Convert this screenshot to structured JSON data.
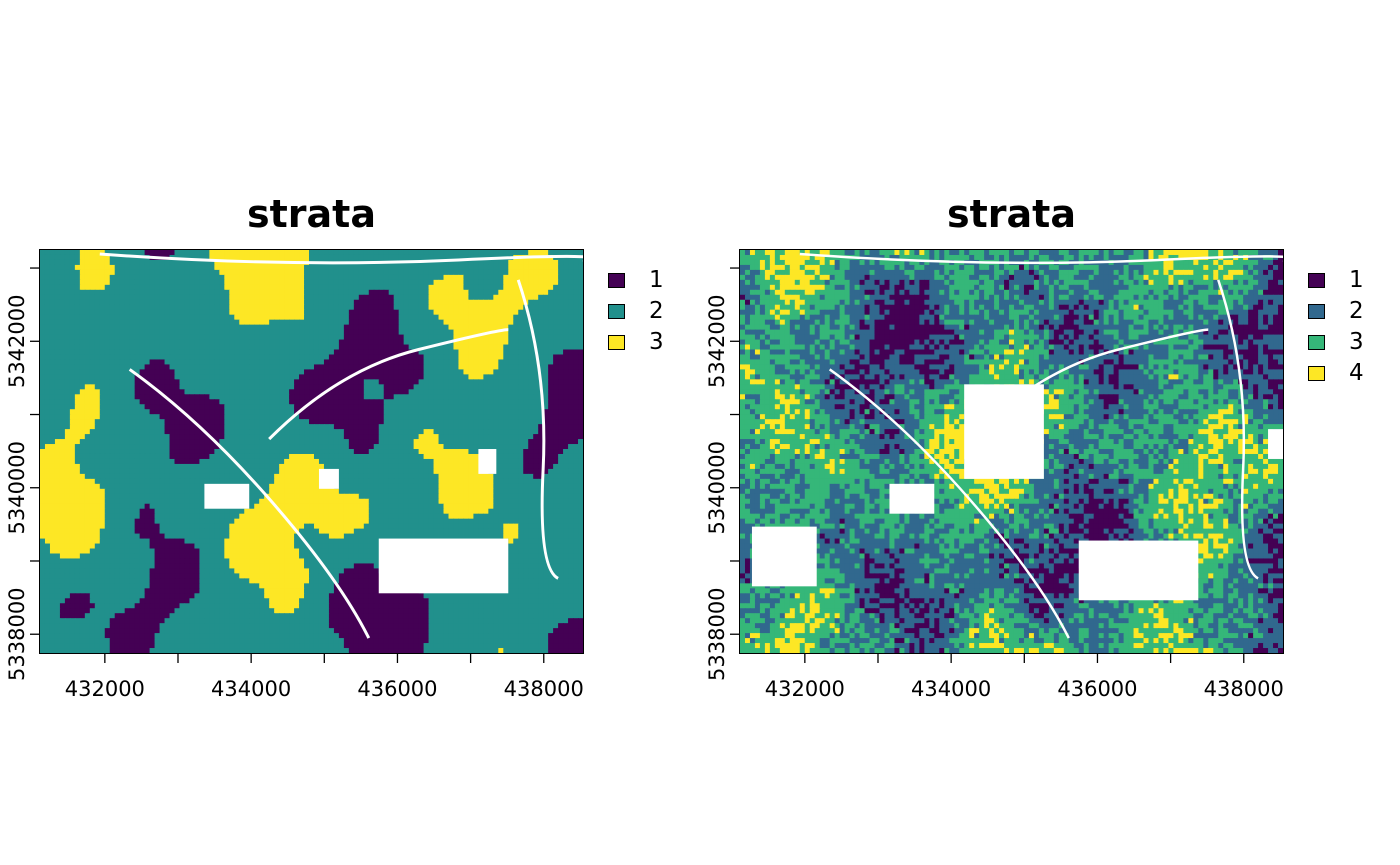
{
  "figure": {
    "panels": [
      {
        "title": "strata",
        "legend": [
          {
            "label": "1",
            "color": "#440154"
          },
          {
            "label": "2",
            "color": "#21908c"
          },
          {
            "label": "3",
            "color": "#fde725"
          }
        ],
        "texture": "smooth"
      },
      {
        "title": "strata",
        "legend": [
          {
            "label": "1",
            "color": "#440154"
          },
          {
            "label": "2",
            "color": "#31688e"
          },
          {
            "label": "3",
            "color": "#35b779"
          },
          {
            "label": "4",
            "color": "#fde725"
          }
        ],
        "texture": "noisy"
      }
    ],
    "x_ticks": [
      "432000",
      "434000",
      "436000",
      "438000"
    ],
    "y_ticks": [
      "5338000",
      "5340000",
      "5342000"
    ],
    "background": "#ffffff"
  },
  "chart_data": [
    {
      "type": "heatmap",
      "title": "strata",
      "x_ticks": [
        432000,
        434000,
        436000,
        438000
      ],
      "y_ticks": [
        5338000,
        5340000,
        5342000
      ],
      "xlim": [
        431100,
        438550
      ],
      "ylim": [
        5337730,
        5343260
      ],
      "categories": [
        "1",
        "2",
        "3"
      ],
      "colors": [
        "#440154",
        "#21908c",
        "#fde725"
      ]
    },
    {
      "type": "heatmap",
      "title": "strata",
      "x_ticks": [
        432000,
        434000,
        436000,
        438000
      ],
      "y_ticks": [
        5338000,
        5340000,
        5342000
      ],
      "xlim": [
        431100,
        438550
      ],
      "ylim": [
        5337730,
        5343260
      ],
      "categories": [
        "1",
        "2",
        "3",
        "4"
      ],
      "colors": [
        "#440154",
        "#31688e",
        "#35b779",
        "#fde725"
      ]
    }
  ]
}
